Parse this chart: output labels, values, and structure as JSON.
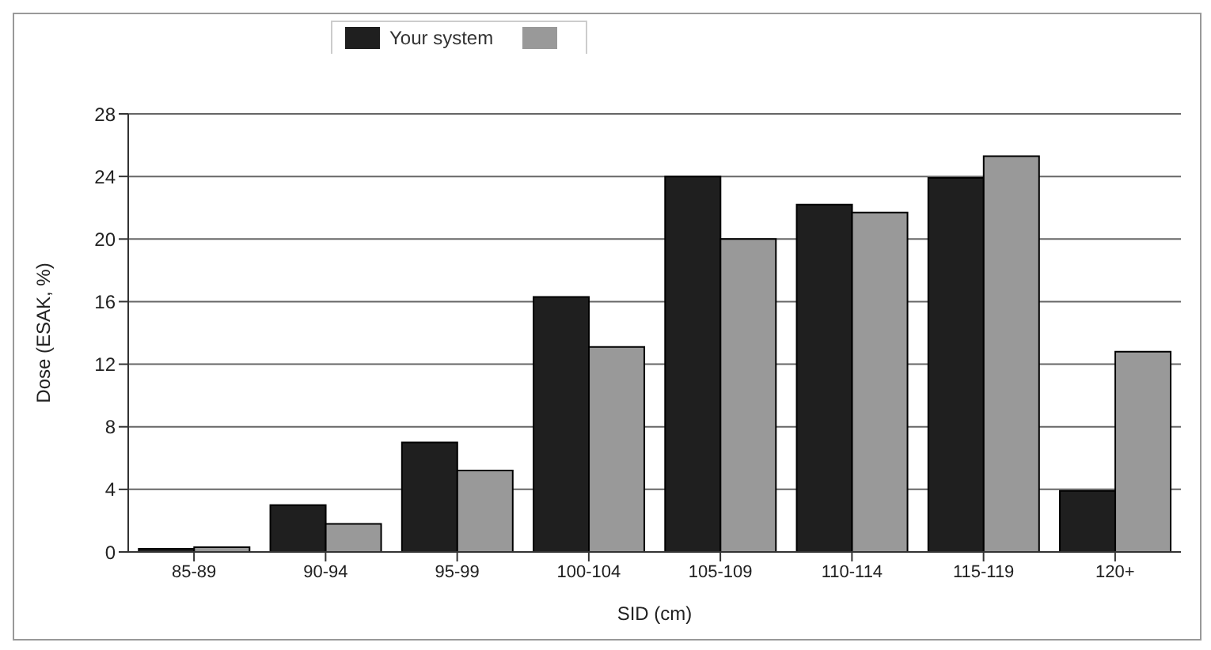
{
  "chart_data": {
    "type": "bar",
    "xlabel": "SID (cm)",
    "ylabel": "Dose (ESAK, %)",
    "categories": [
      "85-89",
      "90-94",
      "95-99",
      "100-104",
      "105-109",
      "110-114",
      "115-119",
      "120+"
    ],
    "series": [
      {
        "name": "Your system",
        "color": "#1f1f1f",
        "values": [
          0.2,
          3.0,
          7.0,
          16.3,
          24.0,
          22.2,
          23.9,
          3.9
        ]
      },
      {
        "color": "#999999",
        "values": [
          0.3,
          1.8,
          5.2,
          13.1,
          20.0,
          21.7,
          25.3,
          12.8
        ]
      }
    ],
    "ylim": [
      0,
      28
    ],
    "yticks": [
      0,
      4,
      8,
      12,
      16,
      20,
      24,
      28
    ],
    "grid": "y",
    "legend": "top"
  }
}
